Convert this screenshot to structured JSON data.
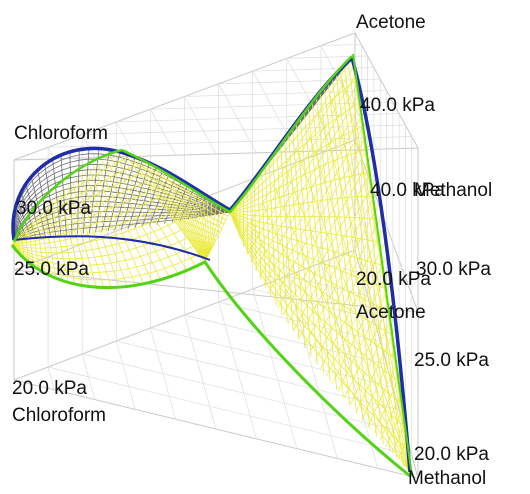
{
  "labels": {
    "acetone_top": "Acetone",
    "chloroform_top": "Chloroform",
    "methanol_mid": "Methanol",
    "acetone_mid": "Acetone",
    "chloroform_bottom": "Chloroform",
    "methanol_bottom": "Methanol"
  },
  "pressure_labels": {
    "top_40": "40.0 kPa",
    "mid_40": "40.0 kPa",
    "left_30": "30.0 kPa",
    "right_30": "30.0 kPa",
    "mid_20": "20.0 kPa",
    "left_25": "25.0 kPa",
    "right_25": "25.0 kPa",
    "left_20": "20.0 kPa",
    "right_20": "20.0 kPa"
  },
  "colors": {
    "vapor_surface": "#6e6e78",
    "liquid_surface": "#eaea3a",
    "dew_edge": "#1f2ea8",
    "bubble_edge": "#52d414",
    "frame_grid": "#c8c8c8"
  }
}
